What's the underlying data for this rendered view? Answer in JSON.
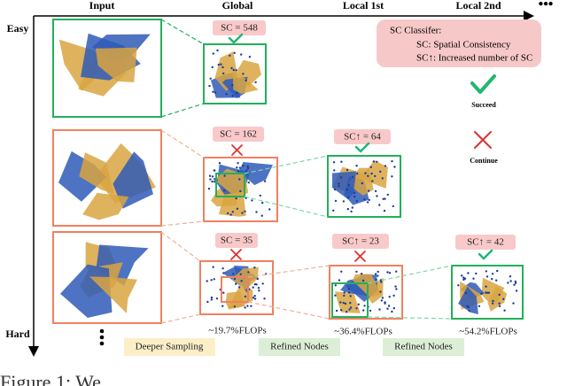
{
  "headers": [
    "Input",
    "Global",
    "Local 1st",
    "Local 2nd",
    "•••"
  ],
  "axis": {
    "top": "Easy",
    "bottom": "Hard"
  },
  "sc_labels": [
    "SC = 548",
    "SC = 162",
    "SC↑ = 64",
    "SC = 35",
    "SC↑ = 23",
    "SC↑ = 42"
  ],
  "legend": {
    "title": "SC Classifer:",
    "lines": [
      "SC: Spatial Consistency",
      "SC↑: Increased number of SC"
    ],
    "succeed": "Succeed",
    "continue": "Continue"
  },
  "flops": [
    "~19.7%FLOPs",
    "~36.4%FLOPs",
    "~54.2%FLOPs"
  ],
  "stages": [
    "Deeper Sampling",
    "Refined Nodes",
    "Refined Nodes"
  ],
  "caption": "Figure 1: We"
}
